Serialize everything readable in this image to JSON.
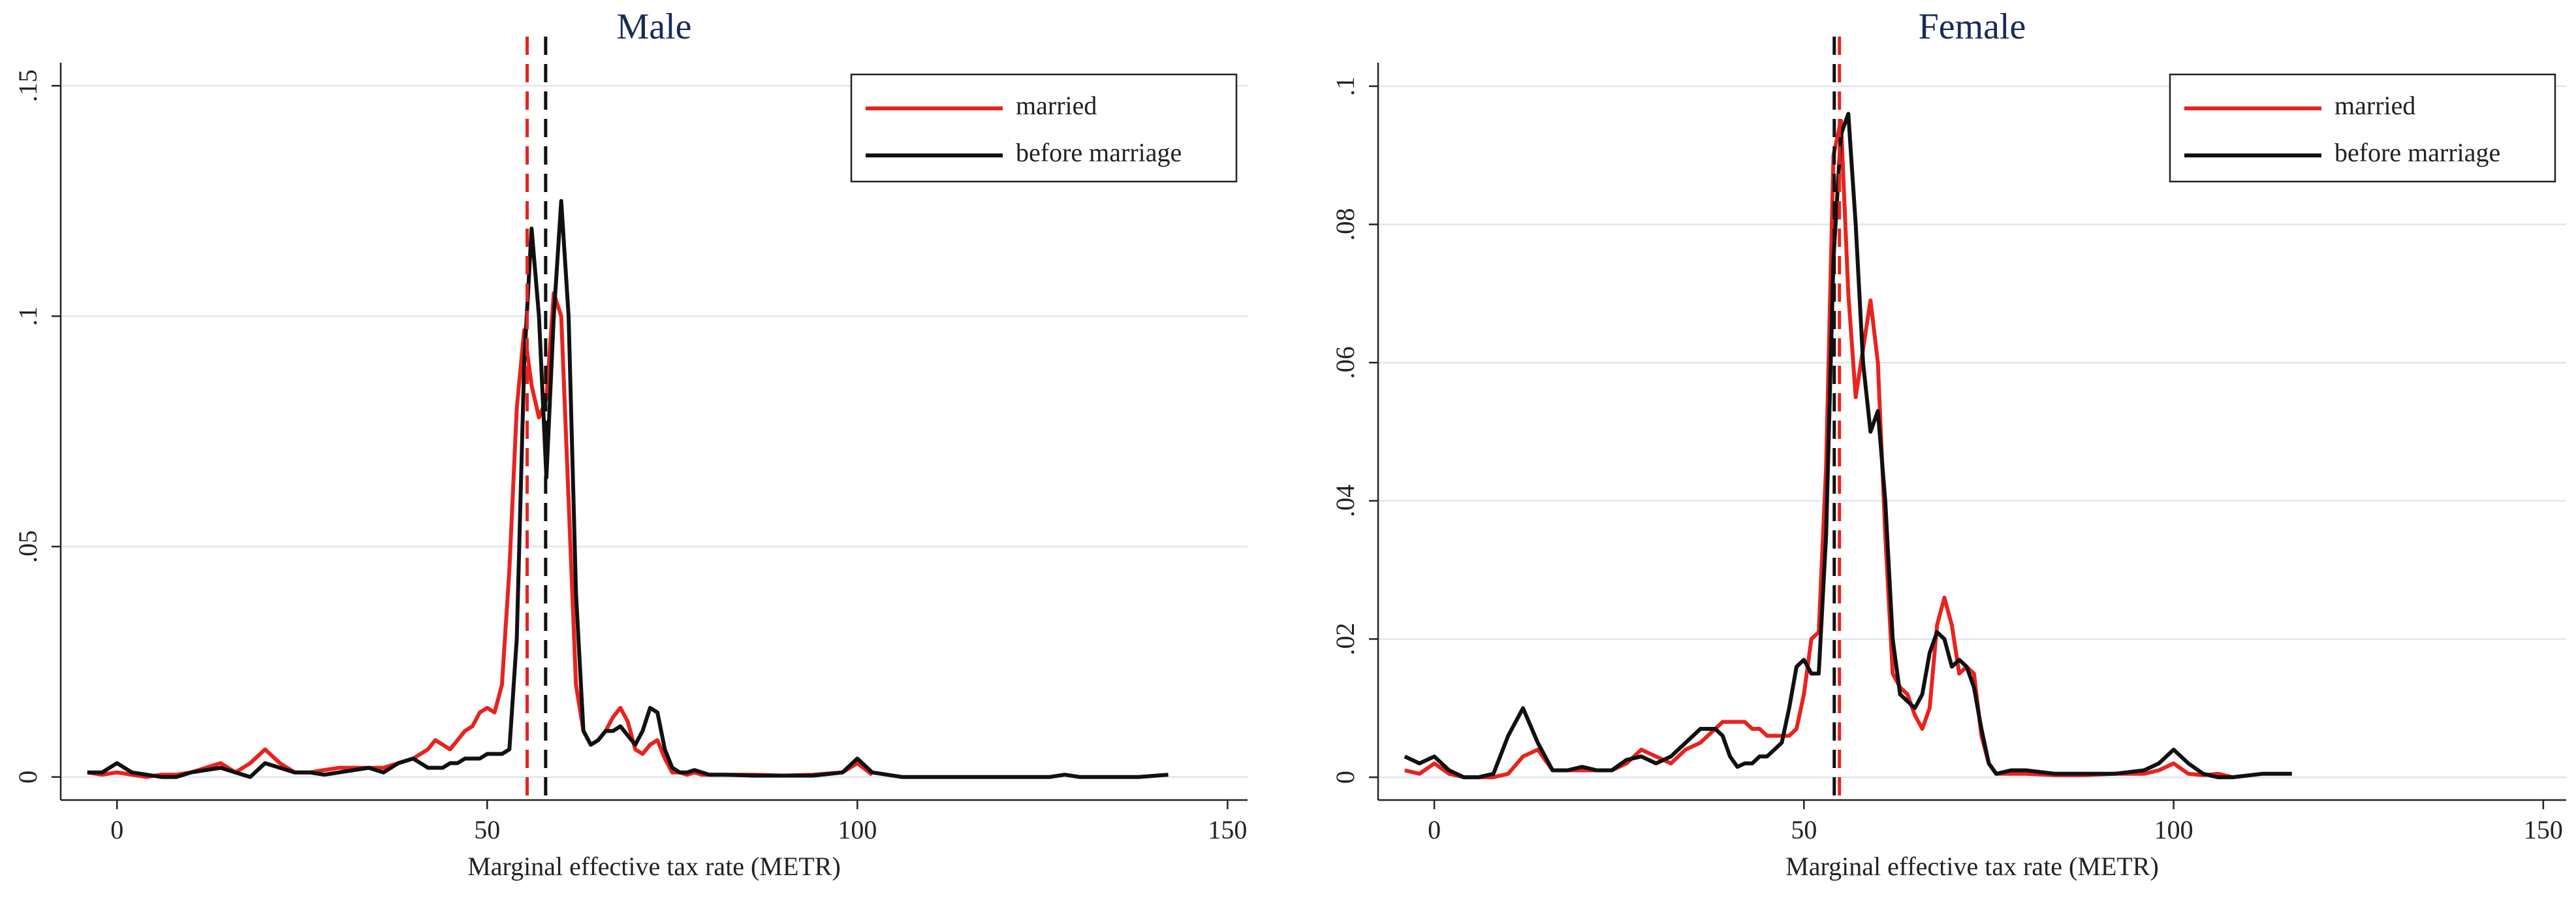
{
  "chart_data": [
    {
      "type": "line",
      "title": "Male",
      "x_label": "Marginal effective tax rate (METR)",
      "xlim": [
        -7.6,
        152.7
      ],
      "ylim": [
        -0.005,
        0.155
      ],
      "xticks": [
        0,
        50,
        100,
        150
      ],
      "yticks": [
        0,
        {
          "value": 0.05,
          "label": ".05"
        },
        {
          "value": 0.1,
          "label": ".1"
        },
        {
          "value": 0.15,
          "label": ".15"
        }
      ],
      "grid": true,
      "legend": "top-right",
      "x": [
        -4,
        -2,
        0,
        2,
        4,
        6,
        8,
        10,
        12,
        14,
        16,
        18,
        20,
        22,
        24,
        26,
        28,
        30,
        32,
        34,
        36,
        38,
        40,
        41,
        42,
        43,
        44,
        45,
        46,
        47,
        48,
        49,
        50,
        51,
        52,
        53,
        54,
        55,
        56,
        57,
        58,
        59,
        60,
        61,
        62,
        63,
        64,
        65,
        66,
        67,
        68,
        69,
        70,
        71,
        72,
        73,
        74,
        75,
        76,
        77,
        78,
        79,
        80,
        82,
        86,
        90,
        94,
        98,
        100,
        102,
        106,
        110,
        114,
        118,
        122,
        126,
        128,
        130,
        134,
        138,
        142
      ],
      "series": [
        {
          "name": "married",
          "color": "#e8231e",
          "values": [
            0.001,
            0.0005,
            0.001,
            0.0005,
            0,
            0.0005,
            0.0005,
            0.001,
            0.002,
            0.003,
            0.001,
            0.003,
            0.006,
            0.003,
            0.001,
            0.001,
            0.0015,
            0.002,
            0.002,
            0.002,
            0.002,
            0.003,
            0.004,
            0.005,
            0.006,
            0.008,
            0.007,
            0.006,
            0.008,
            0.01,
            0.011,
            0.014,
            0.015,
            0.014,
            0.02,
            0.045,
            0.08,
            0.097,
            0.085,
            0.078,
            0.082,
            0.105,
            0.1,
            0.06,
            0.02,
            0.01,
            0.007,
            0.008,
            0.01,
            0.013,
            0.015,
            0.012,
            0.006,
            0.005,
            0.007,
            0.008,
            0.004,
            0.001,
            0.001,
            0.0005,
            0.001,
            0.0005,
            0.0005,
            0.0005,
            0.0005,
            0.0003,
            0.0005,
            0.001,
            0.003,
            0.0005,
            null,
            null,
            null,
            null,
            null,
            null,
            null,
            null,
            null,
            null,
            null
          ]
        },
        {
          "name": "before marriage",
          "color": "#111111",
          "values": [
            0.001,
            0.001,
            0.003,
            0.001,
            0.0005,
            0,
            0,
            0.001,
            0.0015,
            0.002,
            0.001,
            0,
            0.003,
            0.002,
            0.001,
            0.001,
            0.0005,
            0.001,
            0.0015,
            0.002,
            0.001,
            0.003,
            0.004,
            0.003,
            0.002,
            0.002,
            0.002,
            0.003,
            0.003,
            0.004,
            0.004,
            0.004,
            0.005,
            0.005,
            0.005,
            0.006,
            0.03,
            0.09,
            0.119,
            0.1,
            0.065,
            0.1,
            0.125,
            0.1,
            0.04,
            0.01,
            0.007,
            0.008,
            0.01,
            0.01,
            0.011,
            0.009,
            0.007,
            0.01,
            0.015,
            0.014,
            0.006,
            0.002,
            0.001,
            0.001,
            0.0015,
            0.001,
            0.0005,
            0.0005,
            0.0003,
            0.0003,
            0.0003,
            0.001,
            0.004,
            0.001,
            0,
            0,
            0,
            0,
            0,
            0,
            0.0005,
            0,
            0,
            0,
            0.0005
          ]
        }
      ],
      "reference_lines": [
        {
          "x": 55.4,
          "color": "#e8231e"
        },
        {
          "x": 57.9,
          "color": "#111111"
        }
      ]
    },
    {
      "type": "line",
      "title": "Female",
      "x_label": "Marginal effective tax rate (METR)",
      "xlim": [
        -7.6,
        153.1
      ],
      "ylim": [
        -0.0033,
        0.1034
      ],
      "xticks": [
        0,
        50,
        100,
        150
      ],
      "yticks": [
        0,
        {
          "value": 0.02,
          "label": ".02"
        },
        {
          "value": 0.04,
          "label": ".04"
        },
        {
          "value": 0.06,
          "label": ".06"
        },
        {
          "value": 0.08,
          "label": ".08"
        },
        {
          "value": 0.1,
          "label": ".1"
        }
      ],
      "grid": true,
      "legend": "top-right",
      "x": [
        -4,
        -2,
        0,
        2,
        4,
        6,
        8,
        10,
        12,
        14,
        16,
        18,
        20,
        22,
        24,
        26,
        28,
        30,
        32,
        34,
        36,
        37,
        38,
        39,
        40,
        41,
        42,
        43,
        44,
        45,
        46,
        47,
        48,
        49,
        50,
        51,
        52,
        53,
        54,
        55,
        56,
        57,
        58,
        59,
        60,
        61,
        62,
        63,
        64,
        65,
        66,
        67,
        68,
        69,
        70,
        71,
        72,
        73,
        74,
        75,
        76,
        78,
        80,
        84,
        88,
        92,
        96,
        98,
        100,
        102,
        104,
        106,
        108,
        112,
        116
      ],
      "series": [
        {
          "name": "married",
          "color": "#e8231e",
          "values": [
            0.001,
            0.0005,
            0.002,
            0.0005,
            0,
            0,
            0,
            0.0005,
            0.003,
            0.004,
            0.001,
            0.001,
            0.001,
            0.001,
            0.001,
            0.002,
            0.004,
            0.003,
            0.002,
            0.004,
            0.005,
            0.006,
            0.007,
            0.008,
            0.008,
            0.008,
            0.008,
            0.007,
            0.007,
            0.006,
            0.006,
            0.006,
            0.006,
            0.007,
            0.012,
            0.02,
            0.021,
            0.045,
            0.09,
            0.095,
            0.07,
            0.055,
            0.062,
            0.069,
            0.06,
            0.035,
            0.015,
            0.013,
            0.012,
            0.009,
            0.007,
            0.01,
            0.022,
            0.026,
            0.022,
            0.015,
            0.016,
            0.015,
            0.006,
            0.002,
            0.0005,
            0.0005,
            0.0005,
            0.0003,
            0.0003,
            0.0005,
            0.0005,
            0.001,
            0.002,
            0.0005,
            0.0003,
            0.0005,
            0,
            null,
            null
          ]
        },
        {
          "name": "before marriage",
          "color": "#111111",
          "values": [
            0.003,
            0.002,
            0.003,
            0.001,
            0,
            0,
            0.0005,
            0.006,
            0.01,
            0.005,
            0.001,
            0.001,
            0.0015,
            0.001,
            0.001,
            0.0025,
            0.003,
            0.002,
            0.003,
            0.005,
            0.007,
            0.007,
            0.007,
            0.006,
            0.003,
            0.0015,
            0.002,
            0.002,
            0.003,
            0.003,
            0.004,
            0.005,
            0.01,
            0.016,
            0.017,
            0.015,
            0.015,
            0.035,
            0.075,
            0.093,
            0.096,
            0.08,
            0.06,
            0.05,
            0.053,
            0.04,
            0.02,
            0.012,
            0.011,
            0.01,
            0.012,
            0.018,
            0.021,
            0.02,
            0.016,
            0.017,
            0.016,
            0.013,
            0.007,
            0.002,
            0.0005,
            0.001,
            0.001,
            0.0005,
            0.0005,
            0.0005,
            0.001,
            0.002,
            0.004,
            0.002,
            0.0005,
            0,
            0,
            0.0005,
            0.0005
          ]
        }
      ],
      "reference_lines": [
        {
          "x": 54.8,
          "color": "#e8231e"
        },
        {
          "x": 54.1,
          "color": "#111111"
        }
      ]
    }
  ]
}
